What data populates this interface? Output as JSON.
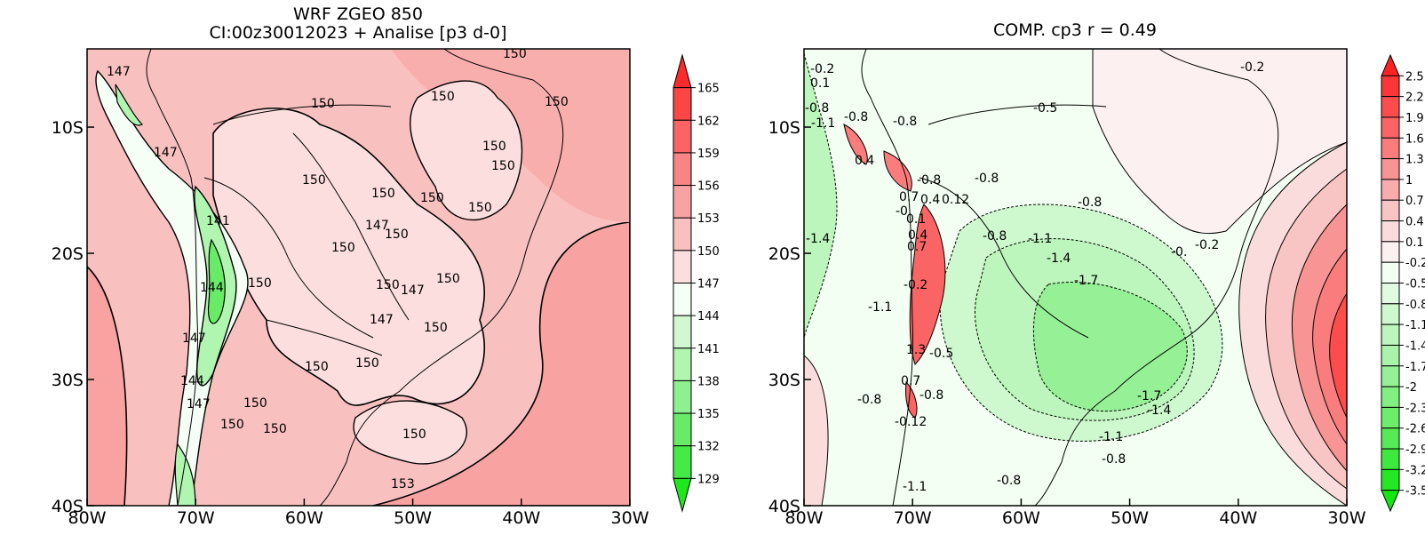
{
  "left_panel": {
    "title_line1": "WRF ZGEO 850",
    "title_line2": "CI:00z30012023 + Analise  [p3 d-0]",
    "x_ticks": [
      "80W",
      "70W",
      "60W",
      "50W",
      "40W",
      "30W"
    ],
    "y_ticks": [
      "10S",
      "20S",
      "30S",
      "40S"
    ],
    "colorbar_labels": [
      "165",
      "162",
      "159",
      "156",
      "153",
      "150",
      "147",
      "144",
      "141",
      "138",
      "135",
      "132",
      "129"
    ],
    "colorbar_colors": [
      "#fc2a2a",
      "#fc4646",
      "#fb6464",
      "#fa8484",
      "#f9a2a2",
      "#f9c0c0",
      "#fcdede",
      "#f5fff5",
      "#d2f8d2",
      "#b0f5b0",
      "#8ff08f",
      "#68ec68",
      "#46ea46",
      "#1ce81c"
    ],
    "contour_labels": [
      "147",
      "150",
      "150",
      "150",
      "150",
      "147",
      "150",
      "150",
      "150",
      "150",
      "150",
      "141",
      "150",
      "150",
      "150",
      "147",
      "150",
      "150",
      "144",
      "150",
      "147",
      "150",
      "147",
      "147",
      "150",
      "150",
      "150",
      "144",
      "147",
      "150",
      "150",
      "150",
      "153"
    ]
  },
  "right_panel": {
    "title": "COMP. cp3  r =  0.49",
    "x_ticks": [
      "80W",
      "70W",
      "60W",
      "50W",
      "40W",
      "30W"
    ],
    "y_ticks": [
      "10S",
      "20S",
      "30S",
      "40S"
    ],
    "colorbar_labels": [
      "2.5",
      "2.2",
      "1.9",
      "1.6",
      "1.3",
      "1",
      "0.7",
      "0.4",
      "0.1",
      "-0.2",
      "-0.5",
      "-0.8",
      "-1.1",
      "-1.4",
      "-1.7",
      "-2",
      "-2.3",
      "-2.6",
      "-2.9",
      "-3.2",
      "-3.5"
    ],
    "colorbar_colors": [
      "#fc2222",
      "#fc3636",
      "#fc4c4c",
      "#fb6464",
      "#fa7c7c",
      "#f99494",
      "#f9acac",
      "#f9c4c4",
      "#fadcdc",
      "#fdf0f0",
      "#f2fff2",
      "#e0fbe0",
      "#cef8ce",
      "#bcf6bc",
      "#aaf3aa",
      "#96f196",
      "#82ef82",
      "#6ced6c",
      "#56eb56",
      "#3ee93e",
      "#24e824",
      "#12e712"
    ],
    "contour_labels": [
      "-0.2",
      "0.1",
      "-0.8",
      "-1.1",
      "-0.8",
      "-0.8",
      "-0.5",
      "-0.2",
      "0.4",
      "-0.8",
      "-0.8",
      "0.7",
      "0.4",
      "0.12",
      "-0.8",
      "-0.",
      "0.1",
      "-1.4",
      "0.4",
      "-0.8",
      "-1.1",
      "0.7",
      "-1.4",
      "-0.",
      "-0.2",
      "-1.7",
      "-0.2",
      "-1.1",
      "1.3",
      "-0.5",
      "0.7",
      "-0.8",
      "-0.8",
      "-1.7",
      "-1.4",
      "-0.12",
      "-1.1",
      "-0.8",
      "-1.1",
      "-0.8"
    ]
  }
}
